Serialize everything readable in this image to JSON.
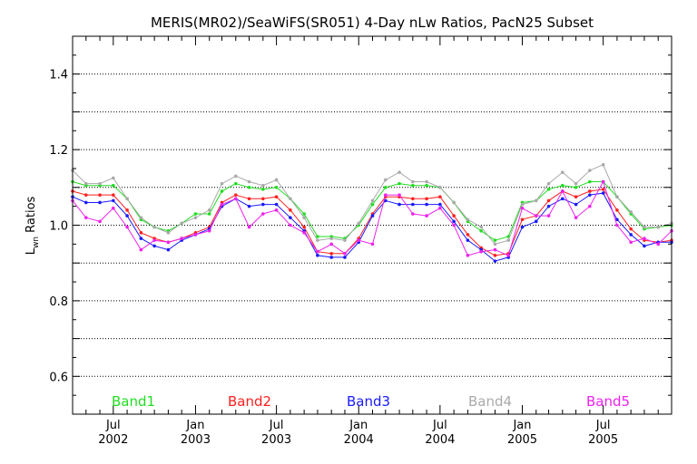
{
  "chart_data": {
    "type": "line",
    "title": "MERIS(MR02)/SeaWiFS(SR051) 4-Day nLw Ratios, PacN25 Subset",
    "ylabel_main": "L",
    "ylabel_sub": "wn",
    "ylabel_rest": " Ratios",
    "ylim": [
      0.5,
      1.5
    ],
    "yticks": [
      {
        "value": 0.6,
        "label": "0.6"
      },
      {
        "value": 0.8,
        "label": "0.8"
      },
      {
        "value": 1.0,
        "label": "1.0"
      },
      {
        "value": 1.2,
        "label": "1.2"
      },
      {
        "value": 1.4,
        "label": "1.4"
      }
    ],
    "ygrid": [
      0.6,
      0.7,
      0.8,
      0.9,
      1.0,
      1.1,
      1.2,
      1.3,
      1.4
    ],
    "xlim": [
      "2002-04-01",
      "2005-12-01"
    ],
    "xticks_major": [
      {
        "date": "2002-07-01",
        "month": "Jul",
        "year": "2002"
      },
      {
        "date": "2003-01-01",
        "month": "Jan",
        "year": "2003"
      },
      {
        "date": "2003-07-01",
        "month": "Jul",
        "year": "2003"
      },
      {
        "date": "2004-01-01",
        "month": "Jan",
        "year": "2004"
      },
      {
        "date": "2004-07-01",
        "month": "Jul",
        "year": "2004"
      },
      {
        "date": "2005-01-01",
        "month": "Jan",
        "year": "2005"
      },
      {
        "date": "2005-07-01",
        "month": "Jul",
        "year": "2005"
      }
    ],
    "x": [
      "2002-04-01",
      "2002-05-01",
      "2002-06-01",
      "2002-07-01",
      "2002-08-01",
      "2002-09-01",
      "2002-10-01",
      "2002-11-01",
      "2002-12-01",
      "2003-01-01",
      "2003-02-01",
      "2003-03-01",
      "2003-04-01",
      "2003-05-01",
      "2003-06-01",
      "2003-07-01",
      "2003-08-01",
      "2003-09-01",
      "2003-10-01",
      "2003-11-01",
      "2003-12-01",
      "2004-01-01",
      "2004-02-01",
      "2004-03-01",
      "2004-04-01",
      "2004-05-01",
      "2004-06-01",
      "2004-07-01",
      "2004-08-01",
      "2004-09-01",
      "2004-10-01",
      "2004-11-01",
      "2004-12-01",
      "2005-01-01",
      "2005-02-01",
      "2005-03-01",
      "2005-04-01",
      "2005-05-01",
      "2005-06-01",
      "2005-07-01",
      "2005-08-01",
      "2005-09-01",
      "2005-10-01",
      "2005-11-01",
      "2005-12-01"
    ],
    "series": [
      {
        "name": "Band1",
        "color": "#22dd22",
        "values": [
          1.115,
          1.105,
          1.105,
          1.105,
          1.07,
          1.015,
          0.995,
          0.985,
          1.005,
          1.03,
          1.03,
          1.09,
          1.11,
          1.1,
          1.095,
          1.1,
          1.07,
          1.03,
          0.97,
          0.97,
          0.965,
          1.0,
          1.055,
          1.1,
          1.11,
          1.105,
          1.105,
          1.1,
          1.06,
          1.01,
          0.985,
          0.96,
          0.97,
          1.06,
          1.065,
          1.095,
          1.105,
          1.1,
          1.115,
          1.115,
          1.075,
          1.03,
          0.99,
          0.995,
          1.0
        ]
      },
      {
        "name": "Band2",
        "color": "#ff2020",
        "values": [
          1.09,
          1.08,
          1.08,
          1.08,
          1.04,
          0.98,
          0.965,
          0.955,
          0.965,
          0.98,
          0.995,
          1.06,
          1.08,
          1.07,
          1.07,
          1.075,
          1.04,
          0.995,
          0.93,
          0.925,
          0.925,
          0.965,
          1.03,
          1.075,
          1.075,
          1.07,
          1.07,
          1.075,
          1.025,
          0.975,
          0.94,
          0.92,
          0.925,
          1.015,
          1.025,
          1.065,
          1.09,
          1.075,
          1.09,
          1.095,
          1.04,
          0.99,
          0.96,
          0.955,
          0.96
        ]
      },
      {
        "name": "Band3",
        "color": "#1a1aff",
        "values": [
          1.075,
          1.06,
          1.06,
          1.065,
          1.025,
          0.965,
          0.945,
          0.935,
          0.96,
          0.975,
          0.99,
          1.05,
          1.07,
          1.05,
          1.055,
          1.055,
          1.02,
          0.985,
          0.92,
          0.915,
          0.915,
          0.955,
          1.025,
          1.065,
          1.055,
          1.055,
          1.055,
          1.055,
          1.01,
          0.96,
          0.935,
          0.905,
          0.915,
          0.995,
          1.01,
          1.05,
          1.07,
          1.055,
          1.08,
          1.085,
          1.015,
          0.975,
          0.945,
          0.955,
          0.955
        ]
      },
      {
        "name": "Band4",
        "color": "#aaaaaa",
        "values": [
          1.145,
          1.11,
          1.11,
          1.125,
          1.07,
          1.02,
          0.995,
          0.98,
          1.005,
          1.02,
          1.04,
          1.11,
          1.13,
          1.115,
          1.105,
          1.12,
          1.07,
          1.02,
          0.96,
          0.965,
          0.96,
          1.005,
          1.065,
          1.12,
          1.14,
          1.115,
          1.115,
          1.1,
          1.06,
          1.015,
          0.995,
          0.95,
          0.96,
          1.055,
          1.065,
          1.11,
          1.14,
          1.11,
          1.145,
          1.16,
          1.075,
          1.035,
          0.995,
          0.995,
          1.005
        ]
      },
      {
        "name": "Band5",
        "color": "#ee22ee",
        "values": [
          1.065,
          1.02,
          1.01,
          1.045,
          0.995,
          0.935,
          0.96,
          0.955,
          0.965,
          0.975,
          0.985,
          1.055,
          1.07,
          0.995,
          1.03,
          1.04,
          1.0,
          0.98,
          0.93,
          0.95,
          0.925,
          0.96,
          0.95,
          1.08,
          1.08,
          1.03,
          1.025,
          1.045,
          1.0,
          0.92,
          0.93,
          0.935,
          0.92,
          1.045,
          1.025,
          1.025,
          1.09,
          1.02,
          1.05,
          1.115,
          1.0,
          0.955,
          0.965,
          0.95,
          0.985
        ]
      }
    ],
    "legend_placement": "bottom",
    "grid": "horizontal-dotted"
  }
}
